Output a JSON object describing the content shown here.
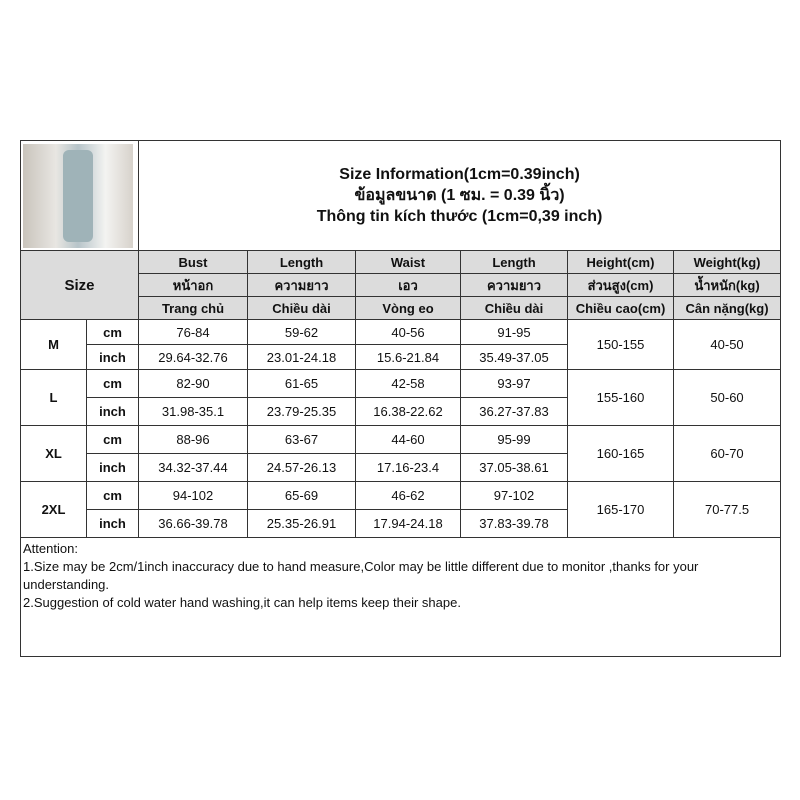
{
  "title": {
    "line1": "Size Information(1cm=0.39inch)",
    "line2": "ข้อมูลขนาด (1 ซม. = 0.39 นิ้ว)",
    "line3": "Thông tin kích thước (1cm=0,39 inch)"
  },
  "size_label": "Size",
  "headers": [
    [
      "Bust",
      "หน้าอก",
      "Trang chủ"
    ],
    [
      "Length",
      "ความยาว",
      "Chiều dài"
    ],
    [
      "Waist",
      "เอว",
      "Vòng eo"
    ],
    [
      "Length",
      "ความยาว",
      "Chiều dài"
    ],
    [
      "Height(cm)",
      "ส่วนสูง(cm)",
      "Chiều cao(cm)"
    ],
    [
      "Weight(kg)",
      "น้ำหนัก(kg)",
      "Cân nặng(kg)"
    ]
  ],
  "rows": [
    {
      "size": "M",
      "cm": [
        "76-84",
        "59-62",
        "40-56",
        "91-95"
      ],
      "inch": [
        "29.64-32.76",
        "23.01-24.18",
        "15.6-21.84",
        "35.49-37.05"
      ],
      "height": "150-155",
      "weight": "40-50"
    },
    {
      "size": "L",
      "cm": [
        "82-90",
        "61-65",
        "42-58",
        "93-97"
      ],
      "inch": [
        "31.98-35.1",
        "23.79-25.35",
        "16.38-22.62",
        "36.27-37.83"
      ],
      "height": "155-160",
      "weight": "50-60"
    },
    {
      "size": "XL",
      "cm": [
        "88-96",
        "63-67",
        "44-60",
        "95-99"
      ],
      "inch": [
        "34.32-37.44",
        "24.57-26.13",
        "17.16-23.4",
        "37.05-38.61"
      ],
      "height": "160-165",
      "weight": "60-70"
    },
    {
      "size": "2XL",
      "cm": [
        "94-102",
        "65-69",
        "46-62",
        "97-102"
      ],
      "inch": [
        "36.66-39.78",
        "25.35-26.91",
        "17.94-24.18",
        "37.83-39.78"
      ],
      "height": "165-170",
      "weight": "70-77.5"
    }
  ],
  "units": {
    "cm": "cm",
    "inch": "inch"
  },
  "attention": {
    "heading": "Attention:",
    "note1": "1.Size may be 2cm/1inch inaccuracy due to hand measure,Color may be little different due to monitor ,thanks for your understanding.",
    "note2": "2.Suggestion of cold water hand washing,it can help items keep their shape."
  }
}
